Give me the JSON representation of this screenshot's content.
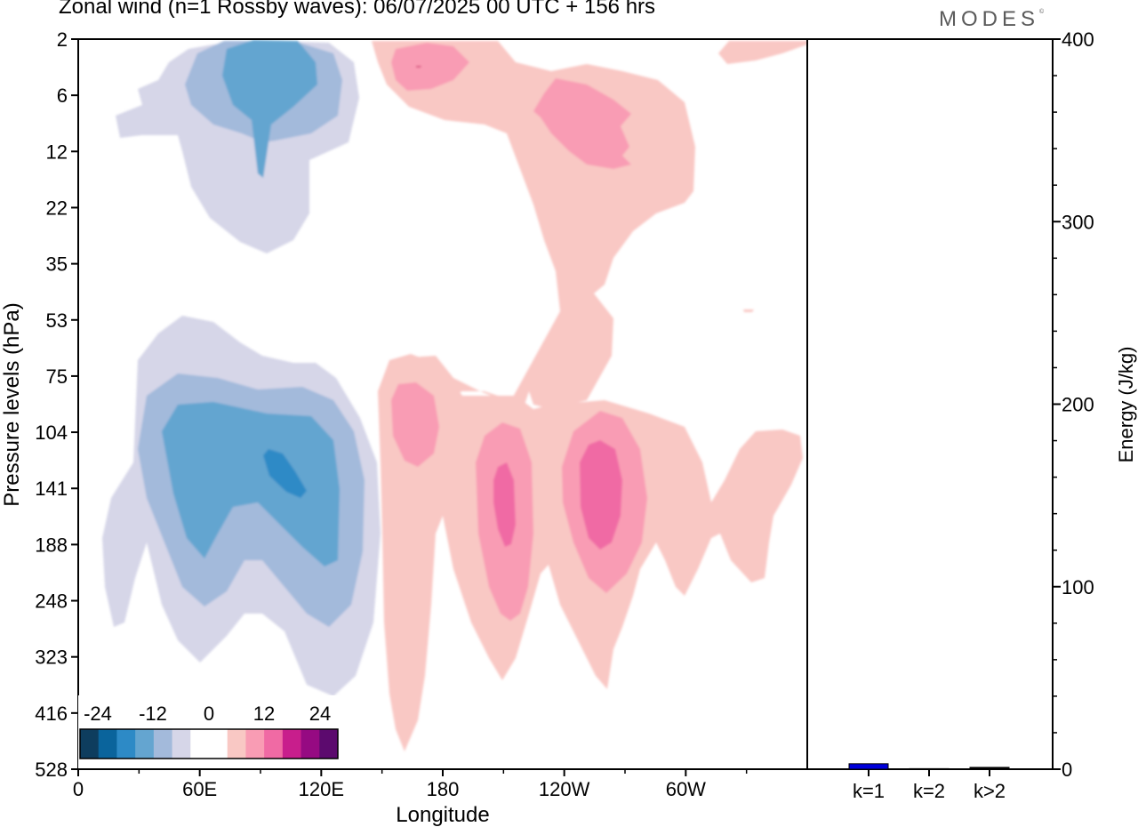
{
  "title": "Zonal wind (n=1 Rossby waves):  06/07/2025  00 UTC  + 156 hrs",
  "brand": "MODES",
  "brand_mark": "©",
  "chart_data": [
    {
      "type": "contour",
      "xlabel": "Longitude",
      "ylabel": "Pressure levels (hPa)",
      "x_ticks": [
        "0",
        "60E",
        "120E",
        "180",
        "120W",
        "60W"
      ],
      "y_ticks": [
        "2",
        "6",
        "12",
        "22",
        "35",
        "53",
        "75",
        "104",
        "141",
        "188",
        "248",
        "323",
        "416",
        "528"
      ],
      "colorbar": {
        "tick_labels": [
          "-24",
          "-12",
          "0",
          "12",
          "24"
        ],
        "colors": [
          "#0e3d5e",
          "#0a649c",
          "#2d8ac6",
          "#64a5d0",
          "#a3badb",
          "#d6d6e8",
          "#ffffff",
          "#ffffff",
          "#f9c8c4",
          "#f99cb4",
          "#f06aa4",
          "#c81e8c",
          "#960a82",
          "#5c0a6e"
        ]
      },
      "notes": "Negative zonal-wind anomaly centres (blue) near 60E-120E at 2-12 hPa and 75-323 hPa; positive centres (pink) near 180, 160W and 120W at 104-248 hPa."
    },
    {
      "type": "bar",
      "categories": [
        "k=1",
        "k=2",
        "k>2"
      ],
      "values": [
        3,
        0.3,
        1
      ],
      "ylabel": "Energy (J/kg)",
      "ylim": [
        0,
        400
      ],
      "y_ticks": [
        "0",
        "100",
        "200",
        "300",
        "400"
      ],
      "colors": {
        "bar_k1": "#0000dd",
        "bar_other": "#000000"
      }
    }
  ]
}
